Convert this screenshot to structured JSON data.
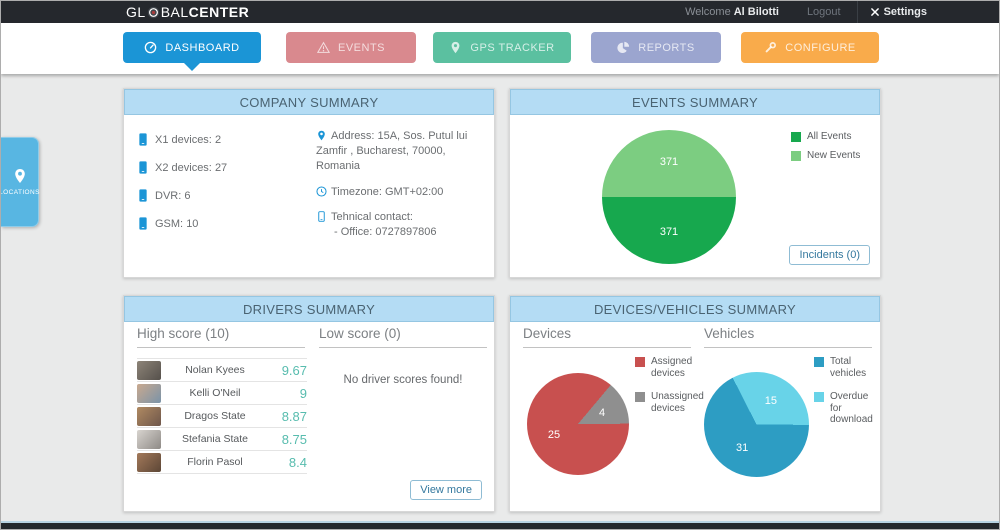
{
  "header": {
    "logo_prefix": "GL",
    "logo_mid": "BAL",
    "logo_bold": "CENTER",
    "welcome_label": "Welcome",
    "user_name": "Al Bilotti",
    "logout_label": "Logout",
    "settings_label": "Settings"
  },
  "nav": {
    "tabs": [
      {
        "label": "DASHBOARD",
        "icon": "gauge-icon",
        "color": "#1b95d6",
        "active": true
      },
      {
        "label": "EVENTS",
        "icon": "warning-icon",
        "color": "#d9898e",
        "active": false
      },
      {
        "label": "GPS TRACKER",
        "icon": "pin-icon",
        "color": "#5bc0a0",
        "active": false
      },
      {
        "label": "REPORTS",
        "icon": "pie-icon",
        "color": "#9ba5cf",
        "active": false
      },
      {
        "label": "CONFIGURE",
        "icon": "wrench-icon",
        "color": "#f9ab4b",
        "active": false
      }
    ]
  },
  "locations_tab": {
    "label": "LOCATIONS"
  },
  "company_summary": {
    "title": "COMPANY SUMMARY",
    "device_counts": [
      {
        "label": "X1 devices:",
        "value": "2"
      },
      {
        "label": "X2 devices:",
        "value": "27"
      },
      {
        "label": "DVR:",
        "value": "6"
      },
      {
        "label": "GSM:",
        "value": "10"
      }
    ],
    "address": "Address: 15A, Sos. Putul lui Zamfir , Bucharest, 70000, Romania",
    "timezone": "Timezone: GMT+02:00",
    "contact_label": "Tehnical contact:",
    "contact_office": "- Office: 0727897806"
  },
  "events_summary": {
    "title": "EVENTS SUMMARY",
    "incidents_button": "Incidents (0)"
  },
  "drivers_summary": {
    "title": "DRIVERS SUMMARY",
    "high_score_title": "High score (10)",
    "low_score_title": "Low score (0)",
    "high_scores": [
      {
        "name": "Nolan Kyees",
        "score": "9.67"
      },
      {
        "name": "Kelli O'Neil",
        "score": "9"
      },
      {
        "name": "Dragos State",
        "score": "8.87"
      },
      {
        "name": "Stefania State",
        "score": "8.75"
      },
      {
        "name": "Florin Pasol",
        "score": "8.4"
      }
    ],
    "low_score_empty": "No driver scores found!",
    "view_more_button": "View more"
  },
  "devices_vehicles_summary": {
    "title": "DEVICES/VEHICLES SUMMARY",
    "devices_title": "Devices",
    "vehicles_title": "Vehicles"
  },
  "chart_data": [
    {
      "type": "pie",
      "title": "Events Summary",
      "start_angle": -90,
      "legend_position": "top-right",
      "slices": [
        {
          "label": "New Events",
          "value": 371,
          "color": "#7ccd81"
        },
        {
          "label": "All Events",
          "value": 371,
          "color": "#17a84e"
        }
      ]
    },
    {
      "type": "pie",
      "title": "Devices",
      "start_angle": 40,
      "legend_position": "right",
      "slices": [
        {
          "label": "Unassigned devices",
          "value": 4,
          "color": "#8f8f8f"
        },
        {
          "label": "Assigned devices",
          "value": 25,
          "color": "#c8504f"
        }
      ]
    },
    {
      "type": "pie",
      "title": "Vehicles",
      "start_angle": -27,
      "legend_position": "right",
      "slices": [
        {
          "label": "Overdue for download",
          "value": 15,
          "color": "#68d3e8"
        },
        {
          "label": "Total vehicles",
          "value": 31,
          "color": "#2d9dc3"
        }
      ]
    }
  ]
}
